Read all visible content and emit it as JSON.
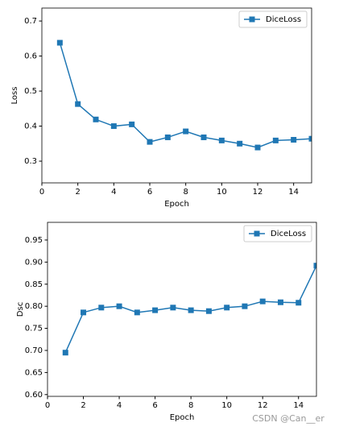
{
  "chart_data": [
    {
      "type": "line",
      "xlabel": "Epoch",
      "ylabel": "Loss",
      "x": [
        1,
        2,
        3,
        4,
        5,
        6,
        7,
        8,
        9,
        10,
        11,
        12,
        13,
        14,
        15
      ],
      "series": [
        {
          "name": "DiceLoss",
          "color": "#1f77b4",
          "marker": "square",
          "values": [
            0.638,
            0.463,
            0.419,
            0.4,
            0.405,
            0.355,
            0.368,
            0.385,
            0.368,
            0.359,
            0.35,
            0.339,
            0.359,
            0.361,
            0.364
          ]
        }
      ],
      "xlim": [
        0,
        15
      ],
      "xticks": [
        0,
        2,
        4,
        6,
        8,
        10,
        12,
        14
      ],
      "ylim": [
        0.238,
        0.737
      ],
      "yticks": [
        0.3,
        0.4,
        0.5,
        0.6,
        0.7
      ],
      "legend": "upper right",
      "grid": false
    },
    {
      "type": "line",
      "xlabel": "Epoch",
      "ylabel": "Dsc",
      "x": [
        1,
        2,
        3,
        4,
        5,
        6,
        7,
        8,
        9,
        10,
        11,
        12,
        13,
        14,
        15
      ],
      "series": [
        {
          "name": "DiceLoss",
          "color": "#1f77b4",
          "marker": "square",
          "values": [
            0.695,
            0.786,
            0.797,
            0.8,
            0.786,
            0.791,
            0.797,
            0.791,
            0.789,
            0.797,
            0.8,
            0.811,
            0.809,
            0.808,
            0.892
          ]
        }
      ],
      "xlim": [
        0,
        15
      ],
      "xticks": [
        0,
        2,
        4,
        6,
        8,
        10,
        12,
        14
      ],
      "ylim": [
        0.596,
        0.99
      ],
      "yticks": [
        {
          "value": 0.6,
          "label": "0.60"
        },
        0.65,
        {
          "value": 0.7,
          "label": "0.70"
        },
        0.75,
        {
          "value": 0.8,
          "label": "0.80"
        },
        0.85,
        {
          "value": 0.9,
          "label": "0.90"
        },
        0.95
      ],
      "legend": "upper right",
      "grid": false
    }
  ],
  "watermark": "CSDN @Can__er"
}
